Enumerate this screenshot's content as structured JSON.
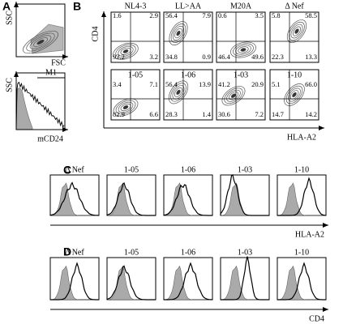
{
  "panel_a": {
    "label": "A",
    "scatter": {
      "y_label": "SSC",
      "x_label": "FSC"
    },
    "histogram": {
      "gate": "M1",
      "y_label": "SSC",
      "x_label": "mCD24"
    }
  },
  "panel_b": {
    "label": "B",
    "y_label": "CD4",
    "x_label": "HLA-A2",
    "plots": [
      {
        "title": "NL4-3",
        "quadrants": {
          "ul": "1.6",
          "ur": "2.9",
          "ll": "92.2",
          "lr": "3.2"
        }
      },
      {
        "title": "LL>AA",
        "quadrants": {
          "ul": "56.4",
          "ur": "7.9",
          "ll": "34.8",
          "lr": "0.9"
        }
      },
      {
        "title": "M20A",
        "quadrants": {
          "ul": "0.6",
          "ur": "3.5",
          "ll": "46.4",
          "lr": "49.6"
        }
      },
      {
        "title": "Δ Nef",
        "quadrants": {
          "ul": "5.8",
          "ur": "58.5",
          "ll": "22.3",
          "lr": "13.3"
        }
      },
      {
        "title": "1-05",
        "quadrants": {
          "ul": "3.4",
          "ur": "7.1",
          "ll": "82.9",
          "lr": "6.6"
        }
      },
      {
        "title": "1-06",
        "quadrants": {
          "ul": "56.4",
          "ur": "13.9",
          "ll": "28.3",
          "lr": "1.4"
        }
      },
      {
        "title": "1-03",
        "quadrants": {
          "ul": "41.2",
          "ur": "20.9",
          "ll": "30.6",
          "lr": "7.2"
        }
      },
      {
        "title": "1-10",
        "quadrants": {
          "ul": "5.1",
          "ur": "66.0",
          "ll": "14.7",
          "lr": "14.2"
        }
      }
    ]
  },
  "panel_c": {
    "label": "C",
    "x_label": "HLA-A2",
    "titles": [
      "Δ Nef",
      "1-05",
      "1-06",
      "1-03",
      "1-10"
    ]
  },
  "panel_d": {
    "label": "D",
    "x_label": "CD4",
    "titles": [
      "Δ Nef",
      "1-05",
      "1-06",
      "1-03",
      "1-10"
    ]
  }
}
